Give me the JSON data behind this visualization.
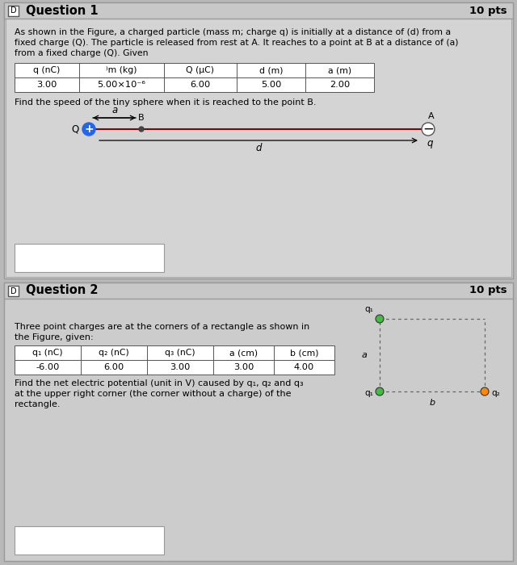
{
  "bg_color": "#b8b8b8",
  "panel_bg": "#cccccc",
  "panel_inner_bg": "#d0d0d0",
  "header_bg": "#c4c4c4",
  "white": "#ffffff",
  "q1_title": "Question 1",
  "q1_pts": "10 pts",
  "q1_text_lines": [
    "As shown in the Figure, a charged particle (mass m; charge q) is initially at a distance of (d) from a",
    "fixed charge (Q). The particle is released from rest at A. It reaches to a point at B at a distance of (a)",
    "from a fixed charge (Q). Given"
  ],
  "q1_table_headers": [
    "q (nC)",
    "⁾m (kg)",
    "Q (μC)",
    "d (m)",
    "a (m)"
  ],
  "q1_table_values": [
    "3.00",
    "5.00×10⁻⁶",
    "6.00",
    "5.00",
    "2.00"
  ],
  "q1_question": "Find the speed of the tiny sphere when it is reached to the point B.",
  "q2_title": "Question 2",
  "q2_pts": "10 pts",
  "q2_text_lines": [
    "Three point charges are at the corners of a rectangle as shown in",
    "the Figure, given:"
  ],
  "q2_table_headers": [
    "q₁ (nC)",
    "q₂ (nC)",
    "q₃ (nC)",
    "a (cm)",
    "b (cm)"
  ],
  "q2_table_values": [
    "-6.00",
    "6.00",
    "3.00",
    "3.00",
    "4.00"
  ],
  "q2_question_lines": [
    "Find the net electric potential (unit in V) caused by q₁, q₂ and q₃",
    "at the upper right corner (the corner without a charge) of the",
    "rectangle."
  ]
}
